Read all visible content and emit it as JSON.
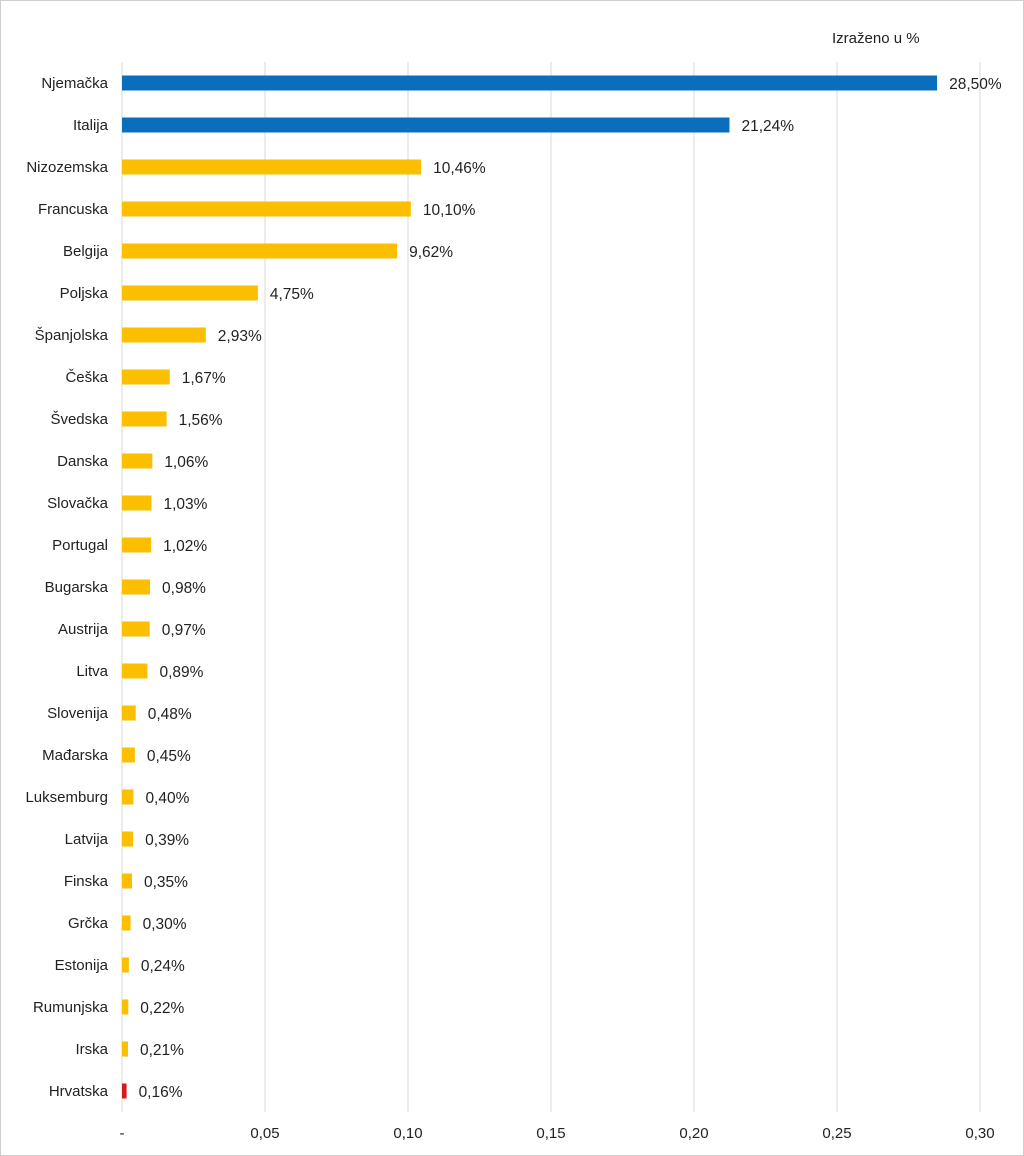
{
  "unit_note": "Izraženo u %",
  "colors": {
    "highlight": "#0a6ebd",
    "default": "#fbbf00",
    "croatia": "#d7191c",
    "grid": "#d9d9d9"
  },
  "chart_data": {
    "type": "bar",
    "orientation": "horizontal",
    "title": "",
    "xlabel": "",
    "ylabel": "",
    "xlim": [
      0,
      0.3
    ],
    "grid": true,
    "x_ticks": [
      0,
      0.05,
      0.1,
      0.15,
      0.2,
      0.25,
      0.3
    ],
    "x_tick_labels": [
      "-",
      "0,05",
      "0,10",
      "0,15",
      "0,20",
      "0,25",
      "0,30"
    ],
    "categories": [
      "Njemačka",
      "Italija",
      "Nizozemska",
      "Francuska",
      "Belgija",
      "Poljska",
      "Španjolska",
      "Češka",
      "Švedska",
      "Danska",
      "Slovačka",
      "Portugal",
      "Bugarska",
      "Austrija",
      "Litva",
      "Slovenija",
      "Mađarska",
      "Luksemburg",
      "Latvija",
      "Finska",
      "Grčka",
      "Estonija",
      "Rumunjska",
      "Irska",
      "Hrvatska"
    ],
    "values": [
      0.285,
      0.2124,
      0.1046,
      0.101,
      0.0962,
      0.0475,
      0.0293,
      0.0167,
      0.0156,
      0.0106,
      0.0103,
      0.0102,
      0.0098,
      0.0097,
      0.0089,
      0.0048,
      0.0045,
      0.004,
      0.0039,
      0.0035,
      0.003,
      0.0024,
      0.0022,
      0.0021,
      0.0016
    ],
    "data_labels": [
      "28,50%",
      "21,24%",
      "10,46%",
      "10,10%",
      "9,62%",
      "4,75%",
      "2,93%",
      "1,67%",
      "1,56%",
      "1,06%",
      "1,03%",
      "1,02%",
      "0,98%",
      "0,97%",
      "0,89%",
      "0,48%",
      "0,45%",
      "0,40%",
      "0,39%",
      "0,35%",
      "0,30%",
      "0,24%",
      "0,22%",
      "0,21%",
      "0,16%"
    ],
    "bar_colors": [
      "highlight",
      "highlight",
      "default",
      "default",
      "default",
      "default",
      "default",
      "default",
      "default",
      "default",
      "default",
      "default",
      "default",
      "default",
      "default",
      "default",
      "default",
      "default",
      "default",
      "default",
      "default",
      "default",
      "default",
      "default",
      "croatia"
    ]
  }
}
